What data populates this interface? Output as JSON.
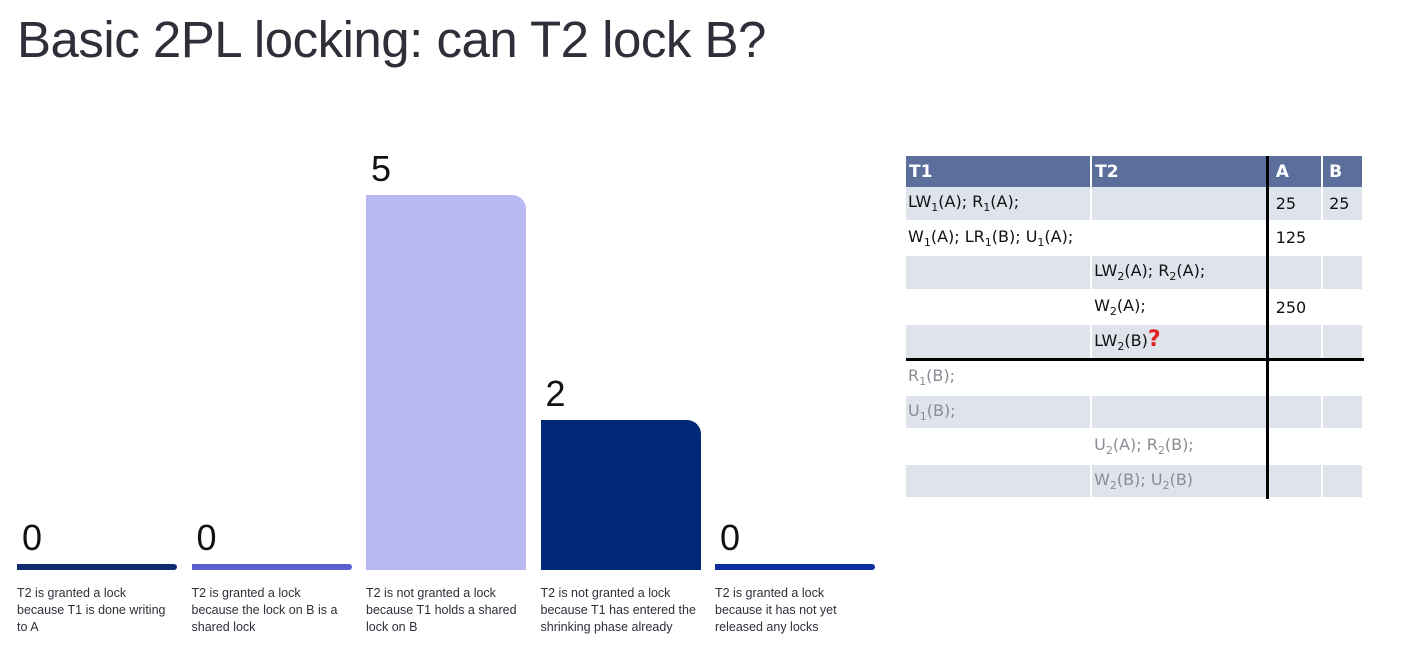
{
  "title": "Basic 2PL locking: can T2 lock B?",
  "chart_data": {
    "type": "bar",
    "categories": [
      "T2 is granted a lock because T1 is done writing to A",
      "T2 is granted a lock because the lock on B is a shared lock",
      "T2 is not granted a lock because T1 holds a shared lock on B",
      "T2 is not granted a lock because T1 has entered the shrinking phase already",
      "T2 is granted a lock because it has not yet released any locks"
    ],
    "values": [
      0,
      0,
      5,
      2,
      0
    ],
    "colors": [
      "#0f2b70",
      "#5a5fcf",
      "#b8b9f2",
      "#002878",
      "#0f2fa0"
    ],
    "ylim": [
      0,
      5
    ],
    "grid": false,
    "legend": "none"
  },
  "schedule": {
    "headers": [
      "T1",
      "T2",
      "A",
      "B"
    ],
    "rows": [
      {
        "t1": "LW1(A); R1(A);",
        "t2": "",
        "a": "25",
        "b": "25",
        "future": false
      },
      {
        "t1": "W1(A); LR1(B); U1(A);",
        "t2": "",
        "a": "125",
        "b": "",
        "future": false
      },
      {
        "t1": "",
        "t2": "LW2(A); R2(A);",
        "a": "",
        "b": "",
        "future": false
      },
      {
        "t1": "",
        "t2": "W2(A);",
        "a": "250",
        "b": "",
        "future": false
      },
      {
        "t1": "",
        "t2": "LW2(B)",
        "mark": "?",
        "a": "",
        "b": "",
        "future": false
      },
      {
        "t1": "R1(B);",
        "t2": "",
        "a": "",
        "b": "",
        "future": true
      },
      {
        "t1": "U1(B);",
        "t2": "",
        "a": "",
        "b": "",
        "future": true
      },
      {
        "t1": "",
        "t2": "U2(A); R2(B);",
        "a": "",
        "b": "",
        "future": true
      },
      {
        "t1": "",
        "t2": "W2(B); U2(B)",
        "a": "",
        "b": "",
        "future": true
      }
    ]
  }
}
